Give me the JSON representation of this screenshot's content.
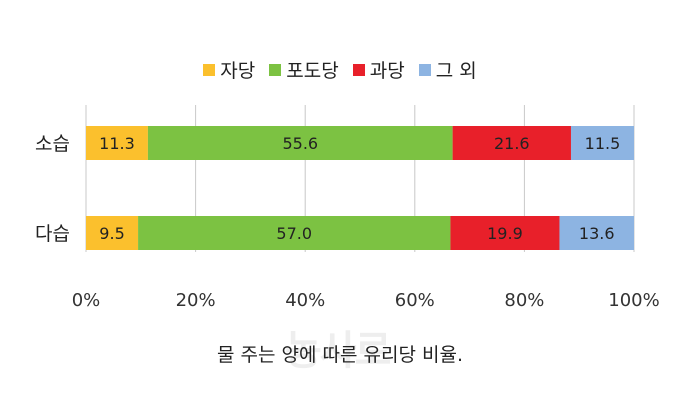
{
  "chart_data": {
    "type": "bar",
    "orientation": "horizontal",
    "stacked": true,
    "categories": [
      "소습",
      "다습"
    ],
    "series": [
      {
        "name": "자당",
        "color": "#FBC02D",
        "values": [
          11.3,
          9.5
        ]
      },
      {
        "name": "포도당",
        "color": "#7CC242",
        "values": [
          55.6,
          57.0
        ]
      },
      {
        "name": "과당",
        "color": "#E8202A",
        "values": [
          21.6,
          19.9
        ]
      },
      {
        "name": "그 외",
        "color": "#8DB4E2",
        "values": [
          11.5,
          13.6
        ]
      }
    ],
    "xlim": [
      0,
      100
    ],
    "x_ticks": [
      "0%",
      "20%",
      "40%",
      "60%",
      "80%",
      "100%"
    ],
    "grid": true,
    "legend_position": "top",
    "caption": "물 주는 양에 따른 유리당 비율."
  }
}
